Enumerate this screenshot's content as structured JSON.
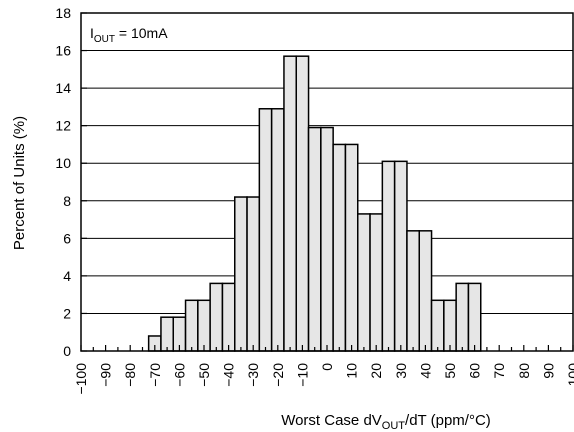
{
  "chart_data": {
    "type": "bar",
    "title": "",
    "annotation": {
      "prefix": "I",
      "subscript": "OUT",
      "suffix": " = 10mA"
    },
    "xlabel": {
      "prefix": "Worst Case dV",
      "subscript": "OUT",
      "suffix": "/dT (ppm/°C)"
    },
    "ylabel": "Percent of Units (%)",
    "xlim": [
      -100,
      100
    ],
    "ylim": [
      0,
      18
    ],
    "grid": "horizontal",
    "x_ticks": [
      -100,
      -90,
      -80,
      -70,
      -60,
      -50,
      -40,
      -30,
      -20,
      -10,
      0,
      10,
      20,
      30,
      40,
      50,
      60,
      70,
      80,
      90,
      100
    ],
    "y_ticks": [
      0,
      2,
      4,
      6,
      8,
      10,
      12,
      14,
      16,
      18
    ],
    "bin_width": 5,
    "bins": [
      {
        "x": -70,
        "value": 0.8
      },
      {
        "x": -65,
        "value": 1.8
      },
      {
        "x": -60,
        "value": 1.8
      },
      {
        "x": -55,
        "value": 2.7
      },
      {
        "x": -50,
        "value": 2.7
      },
      {
        "x": -45,
        "value": 3.6
      },
      {
        "x": -40,
        "value": 3.6
      },
      {
        "x": -35,
        "value": 8.2
      },
      {
        "x": -30,
        "value": 8.2
      },
      {
        "x": -25,
        "value": 12.9
      },
      {
        "x": -20,
        "value": 12.9
      },
      {
        "x": -15,
        "value": 15.7
      },
      {
        "x": -10,
        "value": 15.7
      },
      {
        "x": -5,
        "value": 11.9
      },
      {
        "x": 0,
        "value": 11.9
      },
      {
        "x": 5,
        "value": 11.0
      },
      {
        "x": 10,
        "value": 11.0
      },
      {
        "x": 15,
        "value": 7.3
      },
      {
        "x": 20,
        "value": 7.3
      },
      {
        "x": 25,
        "value": 10.1
      },
      {
        "x": 30,
        "value": 10.1
      },
      {
        "x": 35,
        "value": 6.4
      },
      {
        "x": 40,
        "value": 6.4
      },
      {
        "x": 45,
        "value": 2.7
      },
      {
        "x": 50,
        "value": 2.7
      },
      {
        "x": 55,
        "value": 3.6
      },
      {
        "x": 60,
        "value": 3.6
      }
    ],
    "colors": {
      "bar_fill": "#e6e6e6",
      "bar_stroke": "#000000",
      "grid": "#000000"
    }
  }
}
